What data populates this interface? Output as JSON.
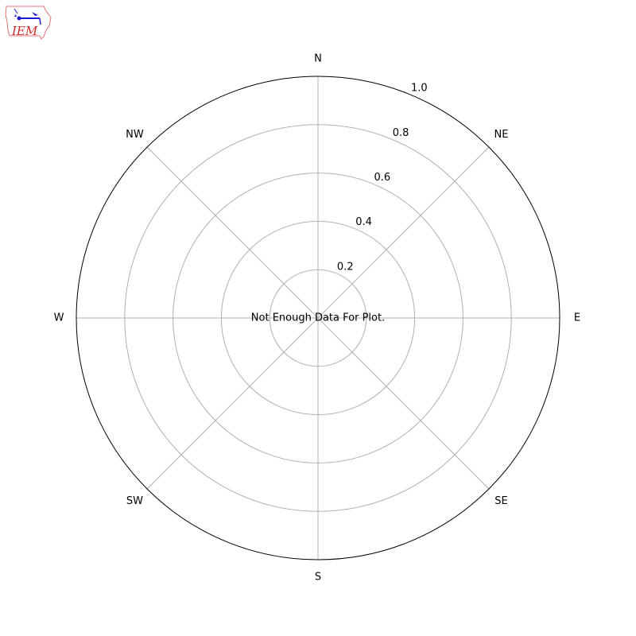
{
  "logo": {
    "text": "IEM"
  },
  "chart_data": {
    "type": "polar",
    "title": "",
    "directions": [
      "N",
      "NE",
      "E",
      "SE",
      "S",
      "SW",
      "W",
      "NW"
    ],
    "radial_ticks": [
      "0.2",
      "0.4",
      "0.6",
      "0.8",
      "1.0"
    ],
    "radial_tick_values": [
      0.2,
      0.4,
      0.6,
      0.8,
      1.0
    ],
    "rlim": [
      0,
      1.0
    ],
    "grid": true,
    "message": "Not Enough Data For Plot.",
    "series": []
  },
  "colors": {
    "grid": "#b0b0b0",
    "frame": "#000000",
    "logo_red": "#d62728",
    "logo_blue": "#1a1adb"
  }
}
